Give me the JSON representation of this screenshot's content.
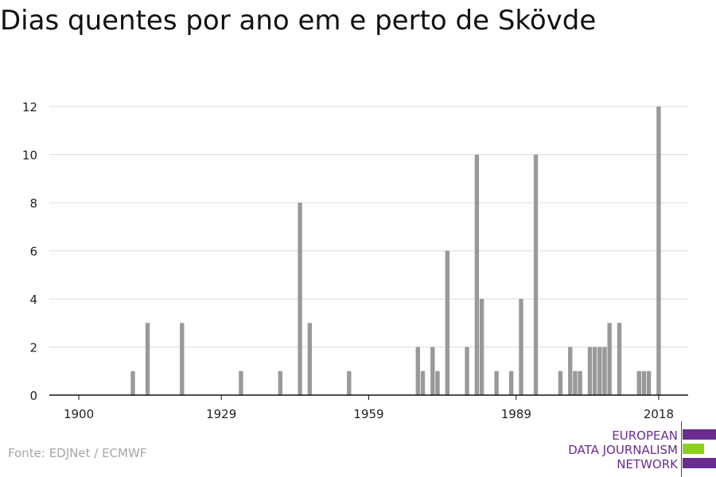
{
  "title": "Dias quentes por ano em e perto de Skövde",
  "source": "Fonte: EDJNet / ECMWF",
  "logo": {
    "line1": "EUROPEAN",
    "line2": "DATA JOURNALISM",
    "line3": "NETWORK",
    "colors": {
      "purple": "#6a2c91",
      "green": "#8ccf1f"
    }
  },
  "chart_data": {
    "type": "bar",
    "title": "Dias quentes por ano em e perto de Skövde",
    "xlabel": "",
    "ylabel": "",
    "xlim": [
      1894,
      2024
    ],
    "ylim": [
      0,
      12
    ],
    "x_ticks": [
      1900,
      1929,
      1959,
      1989,
      2018
    ],
    "y_ticks": [
      0,
      2,
      4,
      6,
      8,
      10,
      12
    ],
    "grid": true,
    "bar_color": "#999999",
    "series": [
      {
        "x": [
          1911,
          1914,
          1921,
          1933,
          1941,
          1945,
          1947,
          1955,
          1969,
          1970,
          1972,
          1973,
          1975,
          1979,
          1981,
          1982,
          1985,
          1988,
          1990,
          1993,
          1998,
          2000,
          2001,
          2002,
          2004,
          2005,
          2006,
          2007,
          2008,
          2010,
          2014,
          2015,
          2016,
          2018
        ],
        "values": [
          1,
          3,
          3,
          1,
          1,
          8,
          3,
          1,
          2,
          1,
          2,
          1,
          6,
          2,
          10,
          4,
          1,
          1,
          4,
          10,
          1,
          2,
          1,
          1,
          2,
          2,
          2,
          2,
          3,
          3,
          1,
          1,
          1,
          12
        ]
      }
    ]
  }
}
